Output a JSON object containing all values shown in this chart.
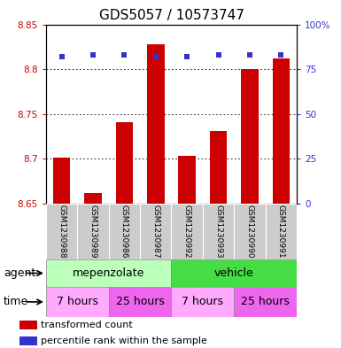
{
  "title": "GDS5057 / 10573747",
  "samples": [
    "GSM1230988",
    "GSM1230989",
    "GSM1230986",
    "GSM1230987",
    "GSM1230992",
    "GSM1230993",
    "GSM1230990",
    "GSM1230991"
  ],
  "bar_values": [
    8.701,
    8.662,
    8.741,
    8.828,
    8.703,
    8.731,
    8.8,
    8.812
  ],
  "bar_bottom": 8.65,
  "percentile_values": [
    82,
    83,
    83,
    82,
    82,
    83,
    83,
    83
  ],
  "ylim_left": [
    8.65,
    8.85
  ],
  "ylim_right": [
    0,
    100
  ],
  "yticks_left": [
    8.65,
    8.7,
    8.75,
    8.8,
    8.85
  ],
  "yticks_right": [
    0,
    25,
    50,
    75,
    100
  ],
  "ytick_labels_left": [
    "8.65",
    "8.7",
    "8.75",
    "8.8",
    "8.85"
  ],
  "ytick_labels_right": [
    "0",
    "25",
    "50",
    "75",
    "100%"
  ],
  "bar_color": "#cc0000",
  "percentile_color": "#3333cc",
  "agent_groups": [
    {
      "label": "mepenzolate",
      "start": 0,
      "end": 4,
      "color": "#bbffbb"
    },
    {
      "label": "vehicle",
      "start": 4,
      "end": 8,
      "color": "#44dd44"
    }
  ],
  "time_groups": [
    {
      "label": "7 hours",
      "start": 0,
      "end": 2,
      "color": "#ffaaff"
    },
    {
      "label": "25 hours",
      "start": 2,
      "end": 4,
      "color": "#ee66ee"
    },
    {
      "label": "7 hours",
      "start": 4,
      "end": 6,
      "color": "#ffaaff"
    },
    {
      "label": "25 hours",
      "start": 6,
      "end": 8,
      "color": "#ee66ee"
    }
  ],
  "legend_bar_label": "transformed count",
  "legend_percentile_label": "percentile rank within the sample",
  "agent_label": "agent",
  "time_label": "time",
  "title_fontsize": 11,
  "tick_fontsize": 7.5,
  "sample_fontsize": 6.5,
  "row_fontsize": 9,
  "legend_fontsize": 8
}
